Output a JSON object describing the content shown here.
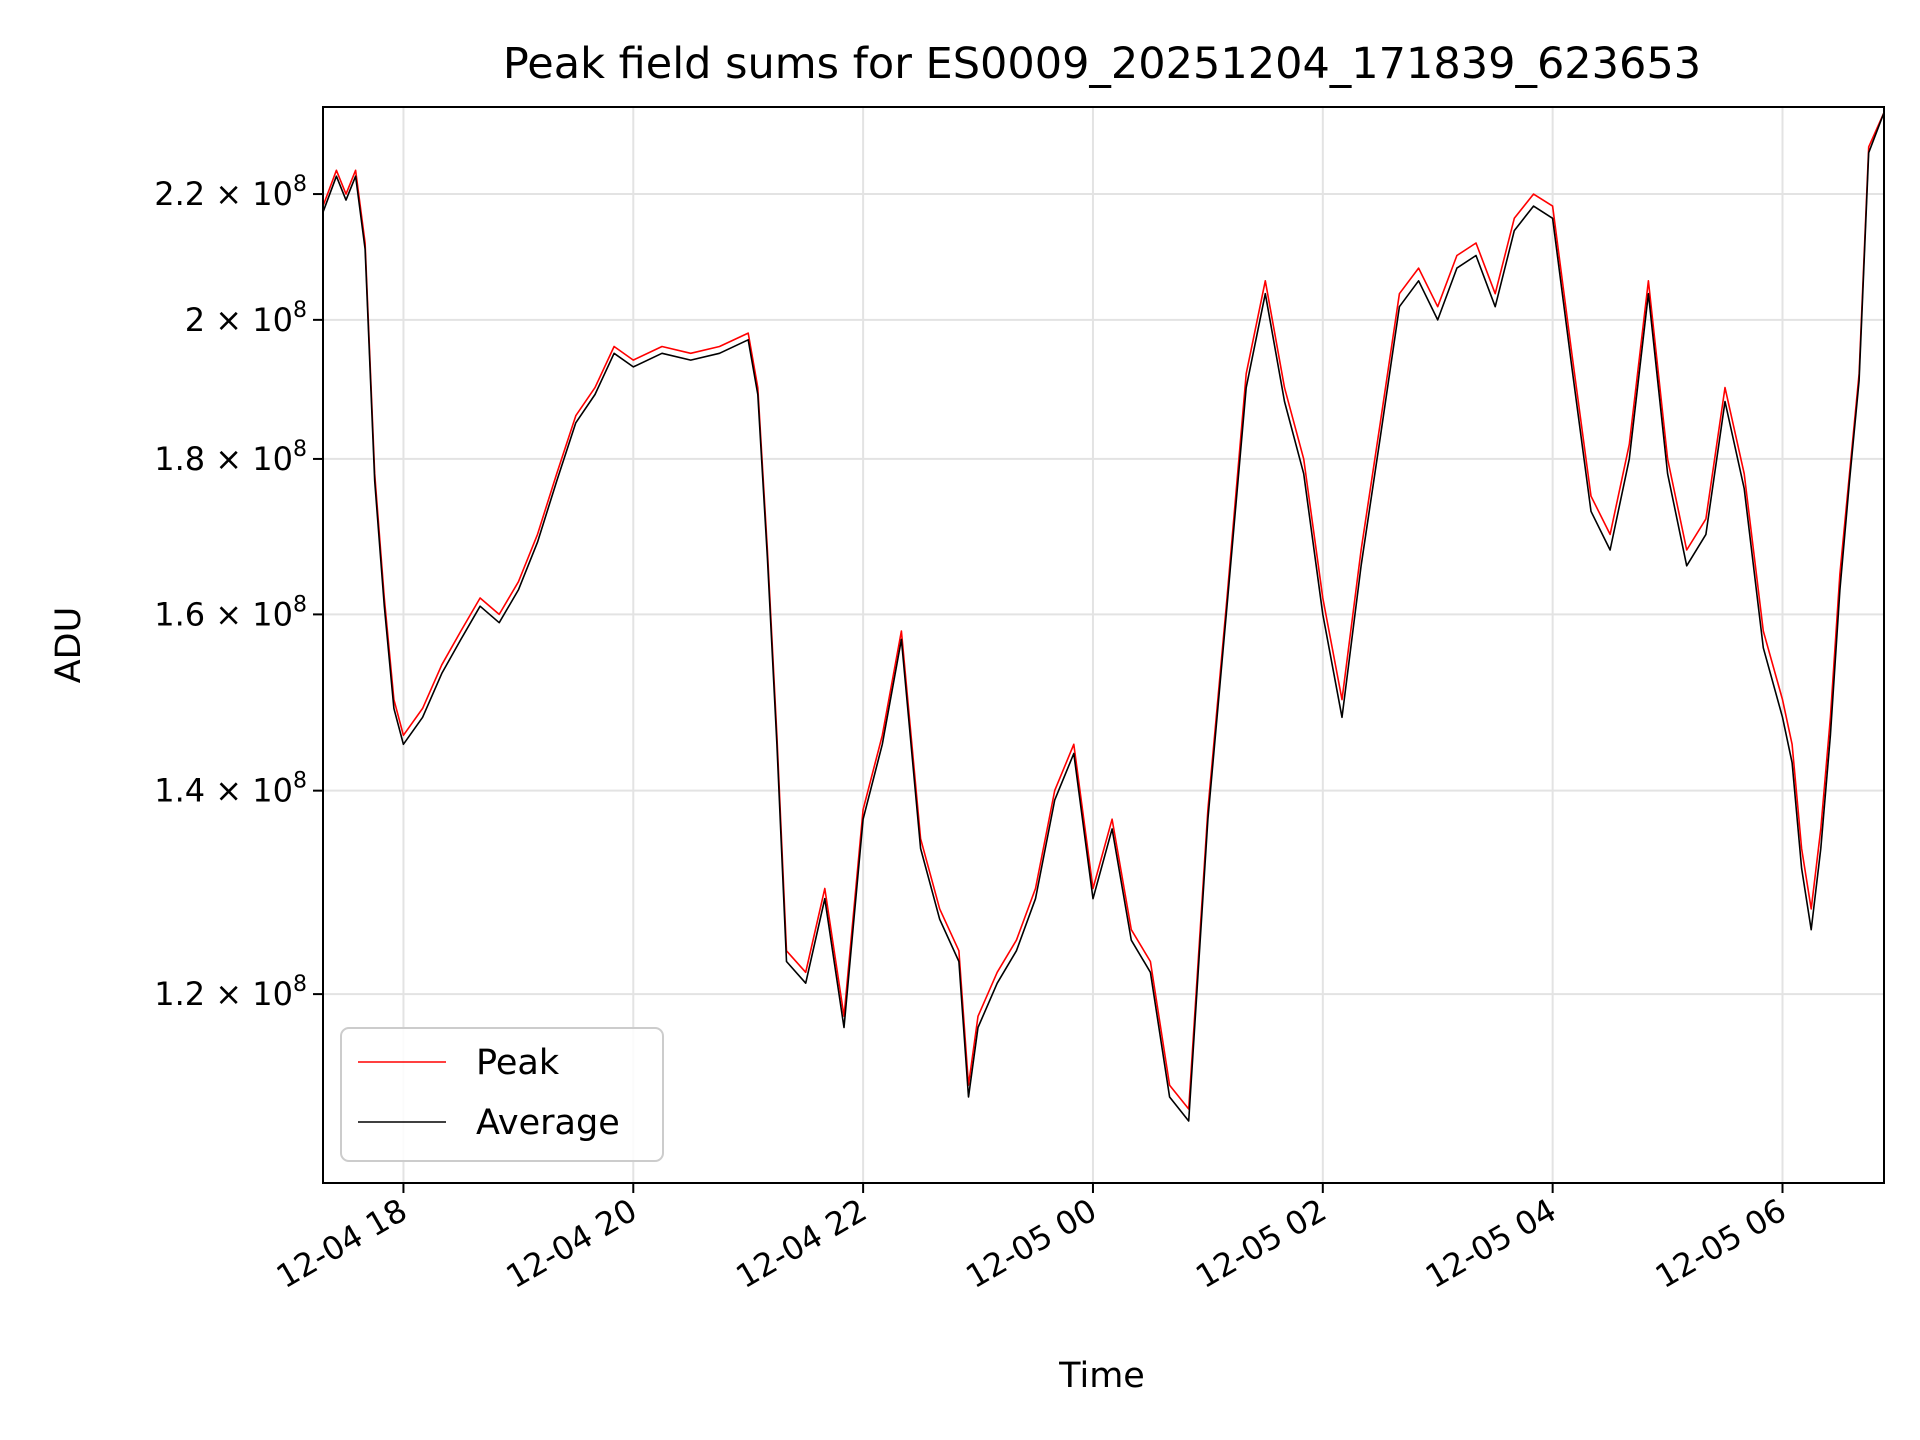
{
  "chart_data": {
    "type": "line",
    "title": "Peak field sums for ES0009_20251204_171839_623653",
    "xlabel": "Time",
    "ylabel": "ADU",
    "yscale": "log",
    "grid": true,
    "legend_position": "lower-left",
    "xlim": [
      "2025-12-04 17:18",
      "2025-12-05 06:53"
    ],
    "ylim": [
      104000000,
      235000000
    ],
    "x_ticks": [
      {
        "value": "2025-12-04 18:00",
        "label": "12-04 18"
      },
      {
        "value": "2025-12-04 20:00",
        "label": "12-04 20"
      },
      {
        "value": "2025-12-04 22:00",
        "label": "12-04 22"
      },
      {
        "value": "2025-12-05 00:00",
        "label": "12-05 00"
      },
      {
        "value": "2025-12-05 02:00",
        "label": "12-05 02"
      },
      {
        "value": "2025-12-05 04:00",
        "label": "12-05 04"
      },
      {
        "value": "2025-12-05 06:00",
        "label": "12-05 06"
      }
    ],
    "y_ticks": [
      {
        "value": 120000000,
        "mantissa": "1.2",
        "base": "10",
        "exponent": "8"
      },
      {
        "value": 140000000,
        "mantissa": "1.4",
        "base": "10",
        "exponent": "8"
      },
      {
        "value": 160000000,
        "mantissa": "1.6",
        "base": "10",
        "exponent": "8"
      },
      {
        "value": 180000000,
        "mantissa": "1.8",
        "base": "10",
        "exponent": "8"
      },
      {
        "value": 200000000,
        "mantissa": "2",
        "base": "10",
        "exponent": "8"
      },
      {
        "value": 220000000,
        "mantissa": "2.2",
        "base": "10",
        "exponent": "8"
      }
    ],
    "series": [
      {
        "name": "Peak",
        "color": "#ff0000",
        "x": [
          "2025-12-04 17:18",
          "2025-12-04 17:25",
          "2025-12-04 17:30",
          "2025-12-04 17:35",
          "2025-12-04 17:40",
          "2025-12-04 17:45",
          "2025-12-04 17:50",
          "2025-12-04 17:55",
          "2025-12-04 18:00",
          "2025-12-04 18:10",
          "2025-12-04 18:20",
          "2025-12-04 18:30",
          "2025-12-04 18:40",
          "2025-12-04 18:50",
          "2025-12-04 19:00",
          "2025-12-04 19:10",
          "2025-12-04 19:20",
          "2025-12-04 19:30",
          "2025-12-04 19:40",
          "2025-12-04 19:50",
          "2025-12-04 20:00",
          "2025-12-04 20:15",
          "2025-12-04 20:30",
          "2025-12-04 20:45",
          "2025-12-04 21:00",
          "2025-12-04 21:05",
          "2025-12-04 21:10",
          "2025-12-04 21:15",
          "2025-12-04 21:20",
          "2025-12-04 21:30",
          "2025-12-04 21:40",
          "2025-12-04 21:50",
          "2025-12-04 22:00",
          "2025-12-04 22:10",
          "2025-12-04 22:20",
          "2025-12-04 22:30",
          "2025-12-04 22:40",
          "2025-12-04 22:50",
          "2025-12-04 22:55",
          "2025-12-04 23:00",
          "2025-12-04 23:10",
          "2025-12-04 23:20",
          "2025-12-04 23:30",
          "2025-12-04 23:40",
          "2025-12-04 23:50",
          "2025-12-05 00:00",
          "2025-12-05 00:10",
          "2025-12-05 00:20",
          "2025-12-05 00:30",
          "2025-12-05 00:40",
          "2025-12-05 00:50",
          "2025-12-05 01:00",
          "2025-12-05 01:10",
          "2025-12-05 01:20",
          "2025-12-05 01:30",
          "2025-12-05 01:40",
          "2025-12-05 01:50",
          "2025-12-05 02:00",
          "2025-12-05 02:10",
          "2025-12-05 02:20",
          "2025-12-05 02:30",
          "2025-12-05 02:40",
          "2025-12-05 02:50",
          "2025-12-05 03:00",
          "2025-12-05 03:10",
          "2025-12-05 03:20",
          "2025-12-05 03:30",
          "2025-12-05 03:40",
          "2025-12-05 03:50",
          "2025-12-05 04:00",
          "2025-12-05 04:10",
          "2025-12-05 04:20",
          "2025-12-05 04:30",
          "2025-12-05 04:40",
          "2025-12-05 04:50",
          "2025-12-05 05:00",
          "2025-12-05 05:10",
          "2025-12-05 05:20",
          "2025-12-05 05:30",
          "2025-12-05 05:40",
          "2025-12-05 05:50",
          "2025-12-05 06:00",
          "2025-12-05 06:05",
          "2025-12-05 06:10",
          "2025-12-05 06:15",
          "2025-12-05 06:20",
          "2025-12-05 06:25",
          "2025-12-05 06:30",
          "2025-12-05 06:35",
          "2025-12-05 06:40",
          "2025-12-05 06:45",
          "2025-12-05 06:53"
        ],
        "values": [
          218000000,
          224000000,
          220000000,
          224000000,
          212000000,
          178000000,
          162000000,
          150000000,
          146000000,
          149000000,
          154000000,
          158000000,
          162000000,
          160000000,
          164000000,
          170000000,
          178000000,
          186000000,
          190000000,
          196000000,
          194000000,
          196000000,
          195000000,
          196000000,
          198000000,
          190000000,
          168000000,
          146000000,
          124000000,
          122000000,
          130000000,
          118000000,
          138000000,
          146000000,
          158000000,
          135000000,
          128000000,
          124000000,
          112000000,
          118000000,
          122000000,
          125000000,
          130000000,
          140000000,
          145000000,
          130000000,
          137000000,
          126000000,
          123000000,
          112000000,
          110000000,
          138000000,
          162000000,
          192000000,
          206000000,
          190000000,
          180000000,
          162000000,
          150000000,
          168000000,
          185000000,
          204000000,
          208000000,
          202000000,
          210000000,
          212000000,
          204000000,
          216000000,
          220000000,
          218000000,
          195000000,
          175000000,
          170000000,
          182000000,
          206000000,
          180000000,
          168000000,
          172000000,
          190000000,
          178000000,
          158000000,
          150000000,
          145000000,
          134000000,
          128000000,
          136000000,
          148000000,
          165000000,
          178000000,
          192000000,
          228000000,
          234000000
        ]
      },
      {
        "name": "Average",
        "color": "#000000",
        "x": [
          "2025-12-04 17:18",
          "2025-12-04 17:25",
          "2025-12-04 17:30",
          "2025-12-04 17:35",
          "2025-12-04 17:40",
          "2025-12-04 17:45",
          "2025-12-04 17:50",
          "2025-12-04 17:55",
          "2025-12-04 18:00",
          "2025-12-04 18:10",
          "2025-12-04 18:20",
          "2025-12-04 18:30",
          "2025-12-04 18:40",
          "2025-12-04 18:50",
          "2025-12-04 19:00",
          "2025-12-04 19:10",
          "2025-12-04 19:20",
          "2025-12-04 19:30",
          "2025-12-04 19:40",
          "2025-12-04 19:50",
          "2025-12-04 20:00",
          "2025-12-04 20:15",
          "2025-12-04 20:30",
          "2025-12-04 20:45",
          "2025-12-04 21:00",
          "2025-12-04 21:05",
          "2025-12-04 21:10",
          "2025-12-04 21:15",
          "2025-12-04 21:20",
          "2025-12-04 21:30",
          "2025-12-04 21:40",
          "2025-12-04 21:50",
          "2025-12-04 22:00",
          "2025-12-04 22:10",
          "2025-12-04 22:20",
          "2025-12-04 22:30",
          "2025-12-04 22:40",
          "2025-12-04 22:50",
          "2025-12-04 22:55",
          "2025-12-04 23:00",
          "2025-12-04 23:10",
          "2025-12-04 23:20",
          "2025-12-04 23:30",
          "2025-12-04 23:40",
          "2025-12-04 23:50",
          "2025-12-05 00:00",
          "2025-12-05 00:10",
          "2025-12-05 00:20",
          "2025-12-05 00:30",
          "2025-12-05 00:40",
          "2025-12-05 00:50",
          "2025-12-05 01:00",
          "2025-12-05 01:10",
          "2025-12-05 01:20",
          "2025-12-05 01:30",
          "2025-12-05 01:40",
          "2025-12-05 01:50",
          "2025-12-05 02:00",
          "2025-12-05 02:10",
          "2025-12-05 02:20",
          "2025-12-05 02:30",
          "2025-12-05 02:40",
          "2025-12-05 02:50",
          "2025-12-05 03:00",
          "2025-12-05 03:10",
          "2025-12-05 03:20",
          "2025-12-05 03:30",
          "2025-12-05 03:40",
          "2025-12-05 03:50",
          "2025-12-05 04:00",
          "2025-12-05 04:10",
          "2025-12-05 04:20",
          "2025-12-05 04:30",
          "2025-12-05 04:40",
          "2025-12-05 04:50",
          "2025-12-05 05:00",
          "2025-12-05 05:10",
          "2025-12-05 05:20",
          "2025-12-05 05:30",
          "2025-12-05 05:40",
          "2025-12-05 05:50",
          "2025-12-05 06:00",
          "2025-12-05 06:05",
          "2025-12-05 06:10",
          "2025-12-05 06:15",
          "2025-12-05 06:20",
          "2025-12-05 06:25",
          "2025-12-05 06:30",
          "2025-12-05 06:35",
          "2025-12-05 06:40",
          "2025-12-05 06:45",
          "2025-12-05 06:53"
        ],
        "values": [
          217000000,
          223000000,
          219000000,
          223000000,
          211000000,
          177000000,
          161000000,
          149000000,
          145000000,
          148000000,
          153000000,
          157000000,
          161000000,
          159000000,
          163000000,
          169000000,
          177000000,
          185000000,
          189000000,
          195000000,
          193000000,
          195000000,
          194000000,
          195000000,
          197000000,
          189000000,
          167000000,
          145000000,
          123000000,
          121000000,
          129000000,
          117000000,
          137000000,
          145000000,
          157000000,
          134000000,
          127000000,
          123000000,
          111000000,
          117000000,
          121000000,
          124000000,
          129000000,
          139000000,
          144000000,
          129000000,
          136000000,
          125000000,
          122000000,
          111000000,
          109000000,
          137000000,
          161000000,
          190000000,
          204000000,
          188000000,
          178000000,
          160000000,
          148000000,
          166000000,
          183000000,
          202000000,
          206000000,
          200000000,
          208000000,
          210000000,
          202000000,
          214000000,
          218000000,
          216000000,
          193000000,
          173000000,
          168000000,
          180000000,
          204000000,
          178000000,
          166000000,
          170000000,
          188000000,
          176000000,
          156000000,
          148000000,
          143000000,
          132000000,
          126000000,
          134000000,
          146000000,
          163000000,
          177000000,
          191000000,
          227000000,
          234000000
        ]
      }
    ]
  }
}
